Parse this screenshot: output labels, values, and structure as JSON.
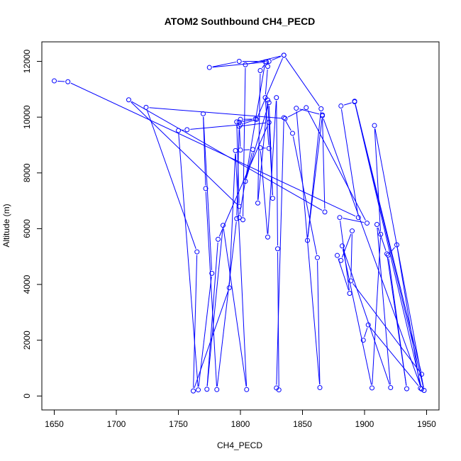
{
  "chart_data": {
    "type": "line",
    "title": "ATOM2 Southbound CH4_PECD",
    "xlabel": "CH4_PECD",
    "ylabel": "Altitude (m)",
    "xlim": [
      1640,
      1960
    ],
    "ylim": [
      -500,
      12700
    ],
    "x_ticks": [
      1650,
      1700,
      1750,
      1800,
      1850,
      1900,
      1950
    ],
    "y_ticks": [
      0,
      2000,
      4000,
      6000,
      8000,
      10000,
      12000
    ],
    "series_color": "#0000ff",
    "grid": false,
    "legend": "none",
    "series": [
      {
        "points": [
          [
            1650,
            11300
          ],
          [
            1661,
            11270
          ],
          [
            1895,
            6400
          ],
          [
            1881,
            10400
          ],
          [
            1892,
            10550
          ],
          [
            1946,
            250
          ],
          [
            1866,
            10050
          ],
          [
            1854,
            5580
          ],
          [
            1865,
            10300
          ],
          [
            1835,
            12220
          ],
          [
            1804,
            11880
          ],
          [
            1802,
            6320
          ],
          [
            1799,
            6400
          ],
          [
            1820,
            11980
          ],
          [
            1822,
            11820
          ],
          [
            1820,
            10700
          ],
          [
            1823,
            8880
          ],
          [
            1816,
            8900
          ],
          [
            1822,
            5700
          ],
          [
            1829,
            10700
          ],
          [
            1830,
            5280
          ],
          [
            1831,
            220
          ],
          [
            1829,
            290
          ],
          [
            1835,
            9980
          ],
          [
            1842,
            9420
          ],
          [
            1862,
            4960
          ],
          [
            1864,
            300
          ],
          [
            1845,
            10320
          ],
          [
            1866,
            10080
          ],
          [
            1868,
            6600
          ],
          [
            1710,
            10620
          ],
          [
            1799,
            6800
          ],
          [
            1797,
            9830
          ],
          [
            1800,
            9920
          ],
          [
            1812,
            9930
          ],
          [
            1799,
            9820
          ],
          [
            1800,
            8820
          ],
          [
            1810,
            8840
          ],
          [
            1804,
            7700
          ],
          [
            1823,
            10520
          ],
          [
            1826,
            7090
          ],
          [
            1822,
            10610
          ],
          [
            1814,
            6920
          ],
          [
            1816,
            11670
          ],
          [
            1821,
            11980
          ],
          [
            1775,
            11780
          ],
          [
            1799,
            12000
          ],
          [
            1823,
            12000
          ],
          [
            1835,
            12220
          ],
          [
            1813,
            9920
          ],
          [
            1800,
            9730
          ],
          [
            1757,
            9550
          ],
          [
            1750,
            9520
          ],
          [
            1766,
            220
          ],
          [
            1777,
            4400
          ],
          [
            1770,
            10120
          ],
          [
            1772,
            7440
          ],
          [
            1781,
            230
          ],
          [
            1797,
            6360
          ],
          [
            1799,
            9670
          ],
          [
            1823,
            9810
          ],
          [
            1782,
            5620
          ],
          [
            1773,
            240
          ],
          [
            1786,
            6120
          ],
          [
            1805,
            230
          ],
          [
            1796,
            8800
          ],
          [
            1791,
            3880
          ],
          [
            1762,
            180
          ],
          [
            1765,
            5170
          ],
          [
            1724,
            10350
          ],
          [
            1836,
            9950
          ],
          [
            1853,
            10340
          ],
          [
            1902,
            6200
          ],
          [
            1880,
            6400
          ],
          [
            1888,
            3680
          ],
          [
            1878,
            5040
          ],
          [
            1881,
            4860
          ],
          [
            1890,
            5920
          ],
          [
            1889,
            4130
          ],
          [
            1946,
            780
          ],
          [
            1892,
            10570
          ],
          [
            1948,
            200
          ],
          [
            1908,
            9700
          ],
          [
            1913,
            5800
          ],
          [
            1906,
            290
          ],
          [
            1882,
            5380
          ],
          [
            1921,
            300
          ],
          [
            1910,
            6150
          ],
          [
            1918,
            5100
          ],
          [
            1934,
            260
          ],
          [
            1919,
            5050
          ],
          [
            1926,
            5420
          ],
          [
            1945,
            280
          ],
          [
            1903,
            2550
          ],
          [
            1899,
            2000
          ]
        ]
      }
    ]
  }
}
